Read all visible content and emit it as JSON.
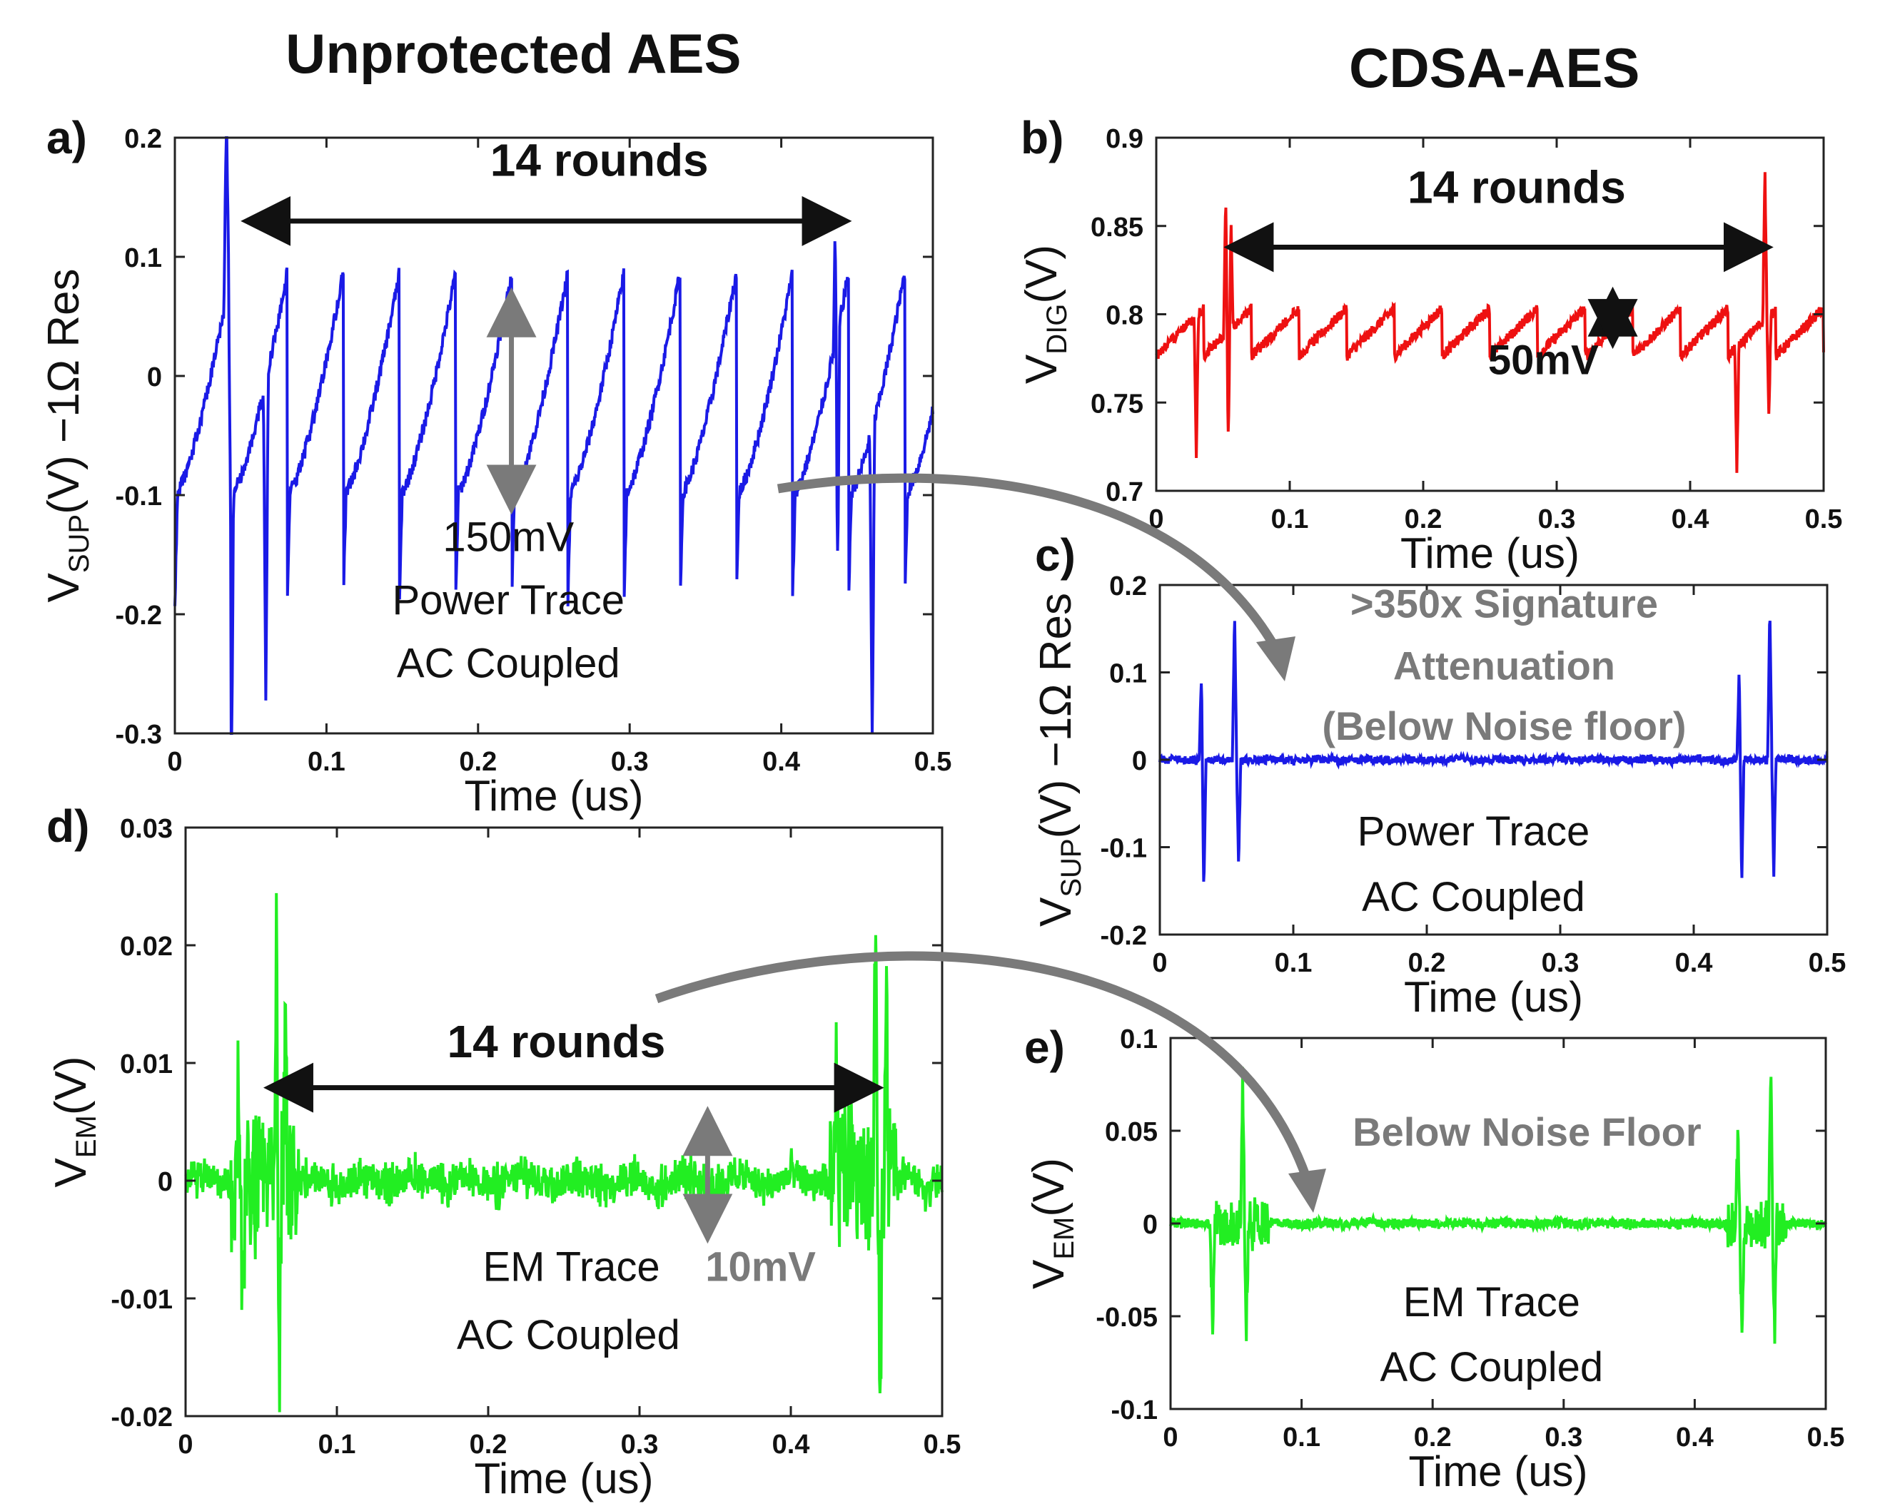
{
  "titles": {
    "left": "Unprotected AES",
    "right": "CDSA-AES"
  },
  "colors": {
    "blue": "#1a1ae6",
    "red": "#ee1111",
    "green": "#22ee22",
    "gray": "#7a7a7a",
    "black": "#111111"
  },
  "chart_data": [
    {
      "id": "a",
      "panel_label": "a)",
      "type": "line",
      "series_name": "Power Trace",
      "xlabel": "Time (us)",
      "ylabel_main": "V",
      "ylabel_sub": "SUP",
      "ylabel_rest": "(V) −1Ω Res",
      "xlim": [
        0,
        0.5
      ],
      "ylim": [
        -0.3,
        0.2
      ],
      "xticks": [
        0,
        0.1,
        0.2,
        0.3,
        0.4,
        0.5
      ],
      "xtick_labels": [
        "0",
        "0.1",
        "0.2",
        "0.3",
        "0.4",
        "0.5"
      ],
      "yticks": [
        -0.3,
        -0.2,
        -0.1,
        0,
        0.1,
        0.2
      ],
      "ytick_labels": [
        "-0.3",
        "-0.2",
        "-0.1",
        "0",
        "0.1",
        "0.2"
      ],
      "color": "blue",
      "baseline": 0.04,
      "noise": 0.006,
      "annotations": [
        {
          "text": "14 rounds",
          "x": 0.28,
          "y": 0.168,
          "bold": true,
          "color": "black",
          "size": 64
        },
        {
          "text": "150mV",
          "x": 0.22,
          "y": -0.147,
          "bold": false,
          "color": "black",
          "size": 58
        },
        {
          "text": "Power Trace",
          "x": 0.22,
          "y": -0.2,
          "bold": false,
          "color": "black",
          "size": 58
        },
        {
          "text": "AC Coupled",
          "x": 0.22,
          "y": -0.253,
          "bold": false,
          "color": "black",
          "size": 58
        }
      ],
      "arrows": [
        {
          "x1": 0.05,
          "y1": 0.13,
          "x2": 0.44,
          "y2": 0.13,
          "color": "black",
          "double": true
        },
        {
          "x1": 0.222,
          "y1": 0.066,
          "x2": 0.222,
          "y2": -0.108,
          "color": "gray",
          "double": true
        }
      ]
    },
    {
      "id": "b",
      "panel_label": "b)",
      "type": "line",
      "series_name": "V_DIG",
      "xlabel": "Time (us)",
      "ylabel_main": "V",
      "ylabel_sub": "DIG",
      "ylabel_rest": "(V)",
      "xlim": [
        0,
        0.5
      ],
      "ylim": [
        0.7,
        0.9
      ],
      "xticks": [
        0,
        0.1,
        0.2,
        0.3,
        0.4,
        0.5
      ],
      "xtick_labels": [
        "0",
        "0.1",
        "0.2",
        "0.3",
        "0.4",
        "0.5"
      ],
      "yticks": [
        0.7,
        0.75,
        0.8,
        0.85,
        0.9
      ],
      "ytick_labels": [
        "0.7",
        "0.75",
        "0.8",
        "0.85",
        "0.9"
      ],
      "color": "red",
      "baseline": 0.79,
      "noise": 0.003,
      "annotations": [
        {
          "text": "14 rounds",
          "x": 0.27,
          "y": 0.863,
          "bold": true,
          "color": "black",
          "size": 64
        },
        {
          "text": "50mV",
          "x": 0.29,
          "y": 0.766,
          "bold": true,
          "color": "black",
          "size": 58
        }
      ],
      "arrows": [
        {
          "x1": 0.058,
          "y1": 0.838,
          "x2": 0.455,
          "y2": 0.838,
          "color": "black",
          "double": true
        },
        {
          "x1": 0.342,
          "y1": 0.81,
          "x2": 0.342,
          "y2": 0.786,
          "color": "black",
          "double": true
        }
      ]
    },
    {
      "id": "c",
      "panel_label": "c)",
      "type": "line",
      "series_name": "Power Trace",
      "xlabel": "Time (us)",
      "ylabel_main": "V",
      "ylabel_sub": "SUP",
      "ylabel_rest": "(V) −1Ω Res",
      "xlim": [
        0,
        0.5
      ],
      "ylim": [
        -0.2,
        0.2
      ],
      "xticks": [
        0,
        0.1,
        0.2,
        0.3,
        0.4,
        0.5
      ],
      "xtick_labels": [
        "0",
        "0.1",
        "0.2",
        "0.3",
        "0.4",
        "0.5"
      ],
      "yticks": [
        -0.2,
        -0.1,
        0,
        0.1,
        0.2
      ],
      "ytick_labels": [
        "-0.2",
        "-0.1",
        "0",
        "0.1",
        "0.2"
      ],
      "color": "blue",
      "baseline": 0,
      "noise": 0.004,
      "annotations": [
        {
          "text": ">350x Signature",
          "x": 0.258,
          "y": 0.163,
          "bold": true,
          "color": "gray",
          "size": 56
        },
        {
          "text": "Attenuation",
          "x": 0.258,
          "y": 0.092,
          "bold": true,
          "color": "gray",
          "size": 56
        },
        {
          "text": "(Below Noise floor)",
          "x": 0.258,
          "y": 0.023,
          "bold": true,
          "color": "gray",
          "size": 56
        },
        {
          "text": "Power Trace",
          "x": 0.235,
          "y": -0.098,
          "bold": false,
          "color": "black",
          "size": 58
        },
        {
          "text": "AC Coupled",
          "x": 0.235,
          "y": -0.173,
          "bold": false,
          "color": "black",
          "size": 58
        }
      ],
      "arrows": []
    },
    {
      "id": "d",
      "panel_label": "d)",
      "type": "line",
      "series_name": "EM Trace",
      "xlabel": "Time (us)",
      "ylabel_main": "V",
      "ylabel_sub": "EM",
      "ylabel_rest": "(V)",
      "xlim": [
        0,
        0.5
      ],
      "ylim": [
        -0.02,
        0.03
      ],
      "xticks": [
        0,
        0.1,
        0.2,
        0.3,
        0.4,
        0.5
      ],
      "xtick_labels": [
        "0",
        "0.1",
        "0.2",
        "0.3",
        "0.4",
        "0.5"
      ],
      "yticks": [
        -0.02,
        -0.01,
        0,
        0.01,
        0.02,
        0.03
      ],
      "ytick_labels": [
        "-0.02",
        "-0.01",
        "0",
        "0.01",
        "0.02",
        "0.03"
      ],
      "color": "green",
      "baseline": 0,
      "noise": 0.0013,
      "annotations": [
        {
          "text": "14 rounds",
          "x": 0.245,
          "y": 0.0105,
          "bold": true,
          "color": "black",
          "size": 64
        },
        {
          "text": "EM Trace",
          "x": 0.255,
          "y": -0.0085,
          "bold": false,
          "color": "black",
          "size": 58
        },
        {
          "text": "10mV",
          "x": 0.38,
          "y": -0.0085,
          "bold": true,
          "color": "gray",
          "size": 58
        },
        {
          "text": "AC Coupled",
          "x": 0.253,
          "y": -0.0143,
          "bold": false,
          "color": "black",
          "size": 58
        }
      ],
      "arrows": [
        {
          "x1": 0.058,
          "y1": 0.0079,
          "x2": 0.455,
          "y2": 0.0079,
          "color": "black",
          "double": true
        },
        {
          "x1": 0.345,
          "y1": 0.0055,
          "x2": 0.345,
          "y2": -0.0045,
          "color": "gray",
          "double": true
        }
      ]
    },
    {
      "id": "e",
      "panel_label": "e)",
      "type": "line",
      "series_name": "EM Trace",
      "xlabel": "Time (us)",
      "ylabel_main": "V",
      "ylabel_sub": "EM",
      "ylabel_rest": "(V)",
      "xlim": [
        0,
        0.5
      ],
      "ylim": [
        -0.1,
        0.1
      ],
      "xticks": [
        0,
        0.1,
        0.2,
        0.3,
        0.4,
        0.5
      ],
      "xtick_labels": [
        "0",
        "0.1",
        "0.2",
        "0.3",
        "0.4",
        "0.5"
      ],
      "yticks": [
        -0.1,
        -0.05,
        0,
        0.05,
        0.1
      ],
      "ytick_labels": [
        "-0.1",
        "-0.05",
        "0",
        "0.05",
        "0.1"
      ],
      "color": "green",
      "baseline": 0,
      "noise": 0.0025,
      "annotations": [
        {
          "text": "Below Noise Floor",
          "x": 0.272,
          "y": 0.042,
          "bold": true,
          "color": "gray",
          "size": 56
        },
        {
          "text": "EM Trace",
          "x": 0.245,
          "y": -0.05,
          "bold": false,
          "color": "black",
          "size": 58
        },
        {
          "text": "AC Coupled",
          "x": 0.245,
          "y": -0.085,
          "bold": false,
          "color": "black",
          "size": 58
        }
      ],
      "arrows": []
    }
  ]
}
